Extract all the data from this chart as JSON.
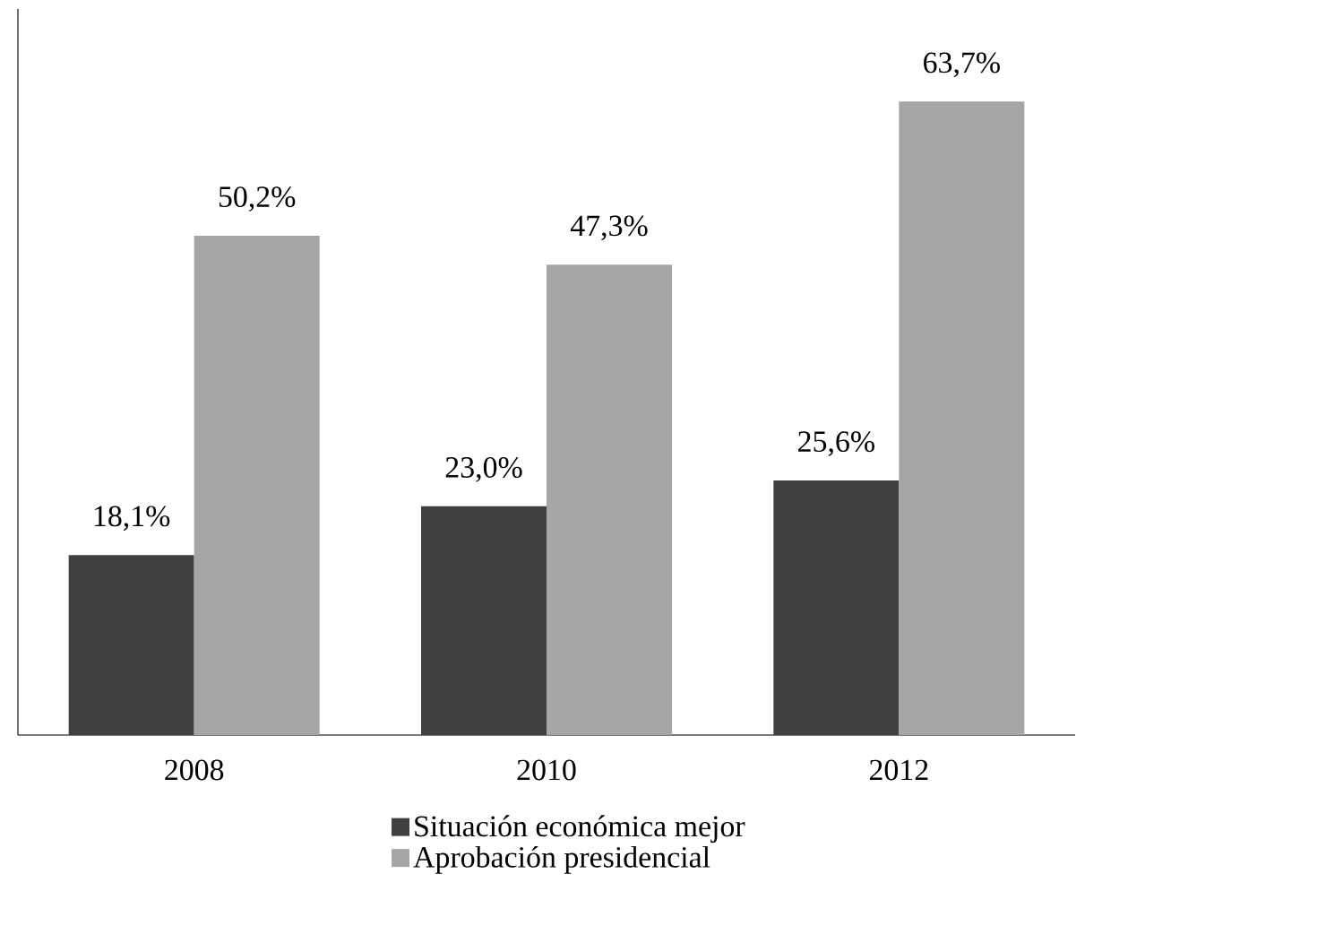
{
  "chart_data": {
    "type": "bar",
    "categories": [
      "2008",
      "2010",
      "2012"
    ],
    "series": [
      {
        "name": "Situación económica mejor",
        "color": "#404040",
        "values": [
          18.1,
          23.0,
          25.6
        ],
        "value_labels": [
          "18,1%",
          "23,0%",
          "25,6%"
        ]
      },
      {
        "name": "Aprobación presidencial",
        "color": "#a6a6a6",
        "values": [
          50.2,
          47.3,
          63.7
        ],
        "value_labels": [
          "50,2%",
          "47,3%",
          "63,7%"
        ]
      }
    ],
    "ylim": [
      0,
      73
    ],
    "tick_labels": "x",
    "legend": "bottom"
  }
}
